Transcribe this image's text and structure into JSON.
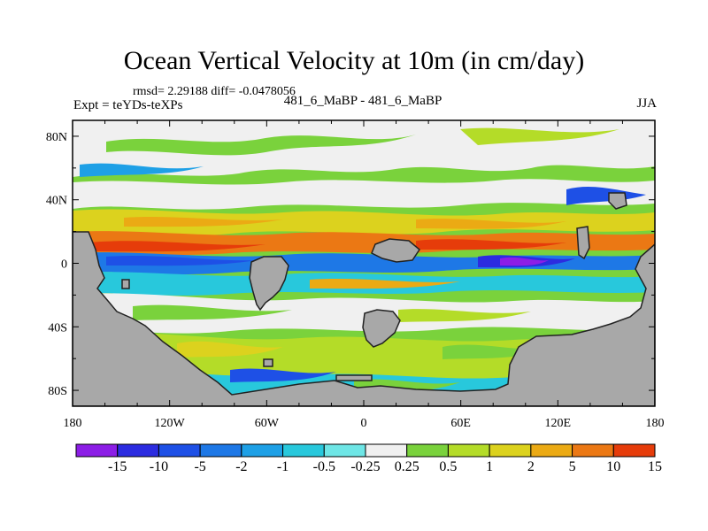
{
  "title": "Ocean Vertical Velocity at 10m (in cm/day)",
  "stats": "rmsd= 2.29188 diff= -0.0478056",
  "experiment": "Expt = teYDs-teXPs",
  "center_label": "481_6_MaBP - 481_6_MaBP",
  "season": "JJA",
  "chart_data": {
    "type": "heatmap",
    "title": "Ocean Vertical Velocity at 10m (in cm/day)",
    "x_ticks": [
      "180",
      "120W",
      "60W",
      "0",
      "60E",
      "120E",
      "180"
    ],
    "y_ticks": [
      "80N",
      "40N",
      "0",
      "40S",
      "80S"
    ],
    "xlim": [
      -180,
      180
    ],
    "ylim": [
      -90,
      90
    ],
    "colorbar": {
      "labels": [
        "-15",
        "-10",
        "-5",
        "-2",
        "-1",
        "-0.5",
        "-0.25",
        "0.25",
        "0.5",
        "1",
        "2",
        "5",
        "10",
        "15"
      ],
      "colors": [
        "#8c1ee6",
        "#2c2ce0",
        "#1e50e6",
        "#1e78e6",
        "#1ea0e6",
        "#28c8dc",
        "#6ee6e6",
        "#f0f0f0",
        "#7ad23c",
        "#b4dc28",
        "#dcd21e",
        "#ebaa14",
        "#eb7814",
        "#e63c0a"
      ]
    },
    "land_color": "#a8a8a8"
  }
}
